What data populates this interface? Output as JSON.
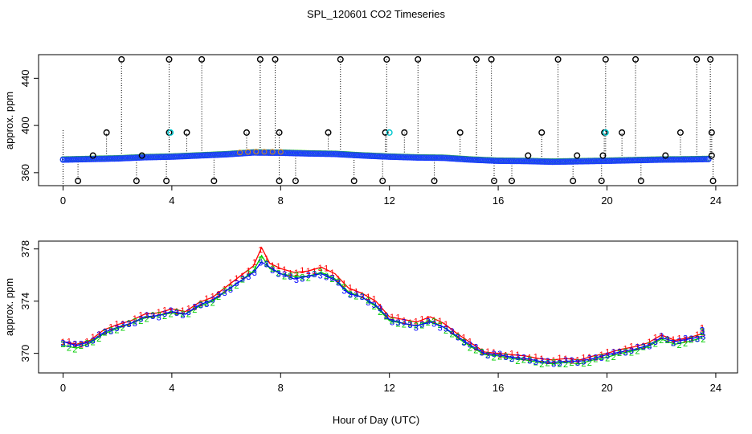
{
  "figure": {
    "title": "SPL_120601  CO2 Timeseries",
    "xlabel": "Hour of Day (UTC)"
  },
  "chart_data": [
    {
      "type": "scatter",
      "panel": "top",
      "ylabel": "approx. ppm",
      "xlim": [
        -0.9,
        24.8
      ],
      "ylim": [
        349,
        460
      ],
      "xticks": [
        0,
        4,
        8,
        12,
        16,
        20,
        24
      ],
      "yticks": [
        360,
        400,
        440
      ],
      "baseline_ppm": [
        [
          0.0,
          371.0
        ],
        [
          1.0,
          371.5
        ],
        [
          2.0,
          372.0
        ],
        [
          3.0,
          373.0
        ],
        [
          4.0,
          373.5
        ],
        [
          5.0,
          374.5
        ],
        [
          6.0,
          375.5
        ],
        [
          7.0,
          377.0
        ],
        [
          8.0,
          376.8
        ],
        [
          9.0,
          376.2
        ],
        [
          10.0,
          375.8
        ],
        [
          11.0,
          374.5
        ],
        [
          12.0,
          373.5
        ],
        [
          13.0,
          372.8
        ],
        [
          14.0,
          372.5
        ],
        [
          15.0,
          371.0
        ],
        [
          16.0,
          370.0
        ],
        [
          17.0,
          369.8
        ],
        [
          18.0,
          369.2
        ],
        [
          19.0,
          369.6
        ],
        [
          20.0,
          370.0
        ],
        [
          21.0,
          370.5
        ],
        [
          22.0,
          371.0
        ],
        [
          23.0,
          371.2
        ],
        [
          23.7,
          371.5
        ]
      ],
      "max_flag_hours": [
        2.15,
        3.9,
        5.1,
        7.25,
        7.8,
        10.2,
        11.9,
        13.05,
        15.2,
        15.75,
        18.2,
        19.95,
        21.05,
        23.3,
        23.8
      ],
      "high_outlier_hours": [
        1.6,
        3.9,
        4.55,
        6.75,
        7.95,
        9.75,
        11.85,
        12.55,
        14.6,
        17.6,
        19.9,
        20.55,
        22.7,
        23.85
      ],
      "cyan_outlier_hours": [
        3.95,
        12.0,
        19.95
      ],
      "mid_outlier_hours": [
        1.1,
        2.9,
        17.1,
        18.9,
        19.85,
        22.15,
        23.85
      ],
      "min_flag_hours": [
        0.55,
        2.7,
        3.8,
        5.55,
        7.95,
        8.55,
        10.7,
        11.75,
        13.65,
        15.85,
        16.5,
        18.75,
        19.8,
        21.25,
        23.9
      ]
    },
    {
      "type": "line",
      "panel": "bottom",
      "ylabel": "approx. ppm",
      "xlim": [
        -0.9,
        24.8
      ],
      "ylim": [
        368.5,
        378.6
      ],
      "xticks": [
        0,
        4,
        8,
        12,
        16,
        20,
        24
      ],
      "yticks": [
        370,
        374,
        378
      ],
      "marker_labels": [
        "1",
        "2",
        "3"
      ],
      "series": [
        {
          "name": "1",
          "color": "#ff0000",
          "points": [
            [
              0.0,
              370.9
            ],
            [
              0.5,
              370.7
            ],
            [
              1.0,
              371.0
            ],
            [
              1.5,
              371.8
            ],
            [
              2.0,
              372.2
            ],
            [
              2.5,
              372.5
            ],
            [
              3.0,
              373.0
            ],
            [
              3.5,
              373.1
            ],
            [
              4.0,
              373.4
            ],
            [
              4.5,
              373.2
            ],
            [
              5.0,
              373.9
            ],
            [
              5.5,
              374.3
            ],
            [
              6.0,
              375.1
            ],
            [
              6.5,
              375.9
            ],
            [
              7.0,
              376.7
            ],
            [
              7.3,
              378.1
            ],
            [
              7.6,
              376.9
            ],
            [
              8.0,
              376.5
            ],
            [
              8.5,
              376.2
            ],
            [
              9.0,
              376.3
            ],
            [
              9.5,
              376.6
            ],
            [
              10.0,
              376.1
            ],
            [
              10.5,
              375.0
            ],
            [
              11.0,
              374.6
            ],
            [
              11.5,
              374.0
            ],
            [
              12.0,
              372.8
            ],
            [
              12.5,
              372.6
            ],
            [
              13.0,
              372.4
            ],
            [
              13.5,
              372.8
            ],
            [
              14.0,
              372.3
            ],
            [
              14.5,
              371.5
            ],
            [
              15.0,
              370.8
            ],
            [
              15.5,
              370.1
            ],
            [
              16.0,
              370.0
            ],
            [
              16.5,
              369.9
            ],
            [
              17.0,
              369.8
            ],
            [
              17.5,
              369.6
            ],
            [
              18.0,
              369.5
            ],
            [
              18.5,
              369.6
            ],
            [
              19.0,
              369.5
            ],
            [
              19.5,
              369.8
            ],
            [
              20.0,
              370.0
            ],
            [
              20.5,
              370.3
            ],
            [
              21.0,
              370.5
            ],
            [
              21.5,
              370.8
            ],
            [
              22.0,
              371.4
            ],
            [
              22.5,
              371.0
            ],
            [
              23.0,
              371.2
            ],
            [
              23.5,
              371.5
            ]
          ]
        },
        {
          "name": "2",
          "color": "#00cc00",
          "points": [
            [
              0.0,
              370.6
            ],
            [
              0.5,
              370.4
            ],
            [
              1.0,
              370.8
            ],
            [
              1.5,
              371.5
            ],
            [
              2.0,
              371.9
            ],
            [
              2.5,
              372.3
            ],
            [
              3.0,
              372.7
            ],
            [
              3.5,
              372.9
            ],
            [
              4.0,
              373.1
            ],
            [
              4.5,
              373.0
            ],
            [
              5.0,
              373.6
            ],
            [
              5.5,
              374.0
            ],
            [
              6.0,
              374.8
            ],
            [
              6.5,
              375.5
            ],
            [
              7.0,
              376.3
            ],
            [
              7.3,
              377.5
            ],
            [
              7.6,
              376.5
            ],
            [
              8.0,
              376.1
            ],
            [
              8.5,
              375.9
            ],
            [
              9.0,
              375.9
            ],
            [
              9.5,
              376.2
            ],
            [
              10.0,
              375.7
            ],
            [
              10.5,
              374.7
            ],
            [
              11.0,
              374.3
            ],
            [
              11.5,
              373.6
            ],
            [
              12.0,
              372.5
            ],
            [
              12.5,
              372.3
            ],
            [
              13.0,
              372.1
            ],
            [
              13.5,
              372.5
            ],
            [
              14.0,
              372.0
            ],
            [
              14.5,
              371.2
            ],
            [
              15.0,
              370.5
            ],
            [
              15.5,
              369.9
            ],
            [
              16.0,
              369.8
            ],
            [
              16.5,
              369.6
            ],
            [
              17.0,
              369.5
            ],
            [
              17.5,
              369.3
            ],
            [
              18.0,
              369.2
            ],
            [
              18.5,
              369.3
            ],
            [
              19.0,
              369.2
            ],
            [
              19.5,
              369.5
            ],
            [
              20.0,
              369.7
            ],
            [
              20.5,
              370.0
            ],
            [
              21.0,
              370.2
            ],
            [
              21.5,
              370.5
            ],
            [
              22.0,
              371.1
            ],
            [
              22.5,
              370.7
            ],
            [
              23.0,
              370.9
            ],
            [
              23.5,
              371.2
            ]
          ]
        },
        {
          "name": "3",
          "color": "#0000ff",
          "points": [
            [
              0.0,
              370.9
            ],
            [
              0.5,
              370.6
            ],
            [
              1.0,
              370.9
            ],
            [
              1.5,
              371.6
            ],
            [
              2.0,
              372.0
            ],
            [
              2.5,
              372.3
            ],
            [
              3.0,
              372.8
            ],
            [
              3.5,
              372.9
            ],
            [
              4.0,
              373.2
            ],
            [
              4.5,
              373.0
            ],
            [
              5.0,
              373.7
            ],
            [
              5.5,
              374.1
            ],
            [
              6.0,
              374.8
            ],
            [
              6.5,
              375.5
            ],
            [
              7.0,
              376.2
            ],
            [
              7.3,
              377.0
            ],
            [
              7.6,
              376.6
            ],
            [
              8.0,
              376.1
            ],
            [
              8.5,
              375.7
            ],
            [
              9.0,
              375.9
            ],
            [
              9.5,
              376.1
            ],
            [
              10.0,
              375.6
            ],
            [
              10.5,
              374.6
            ],
            [
              11.0,
              374.3
            ],
            [
              11.5,
              373.7
            ],
            [
              12.0,
              372.6
            ],
            [
              12.5,
              372.3
            ],
            [
              13.0,
              372.1
            ],
            [
              13.5,
              372.4
            ],
            [
              14.0,
              372.0
            ],
            [
              14.5,
              371.3
            ],
            [
              15.0,
              370.6
            ],
            [
              15.5,
              370.0
            ],
            [
              16.0,
              369.9
            ],
            [
              16.5,
              369.7
            ],
            [
              17.0,
              369.6
            ],
            [
              17.5,
              369.4
            ],
            [
              18.0,
              369.3
            ],
            [
              18.5,
              369.4
            ],
            [
              19.0,
              369.4
            ],
            [
              19.5,
              369.6
            ],
            [
              20.0,
              369.9
            ],
            [
              20.5,
              370.1
            ],
            [
              21.0,
              370.3
            ],
            [
              21.5,
              370.6
            ],
            [
              22.0,
              371.2
            ],
            [
              22.5,
              370.9
            ],
            [
              23.0,
              371.1
            ],
            [
              23.5,
              371.3
            ]
          ]
        }
      ]
    }
  ]
}
